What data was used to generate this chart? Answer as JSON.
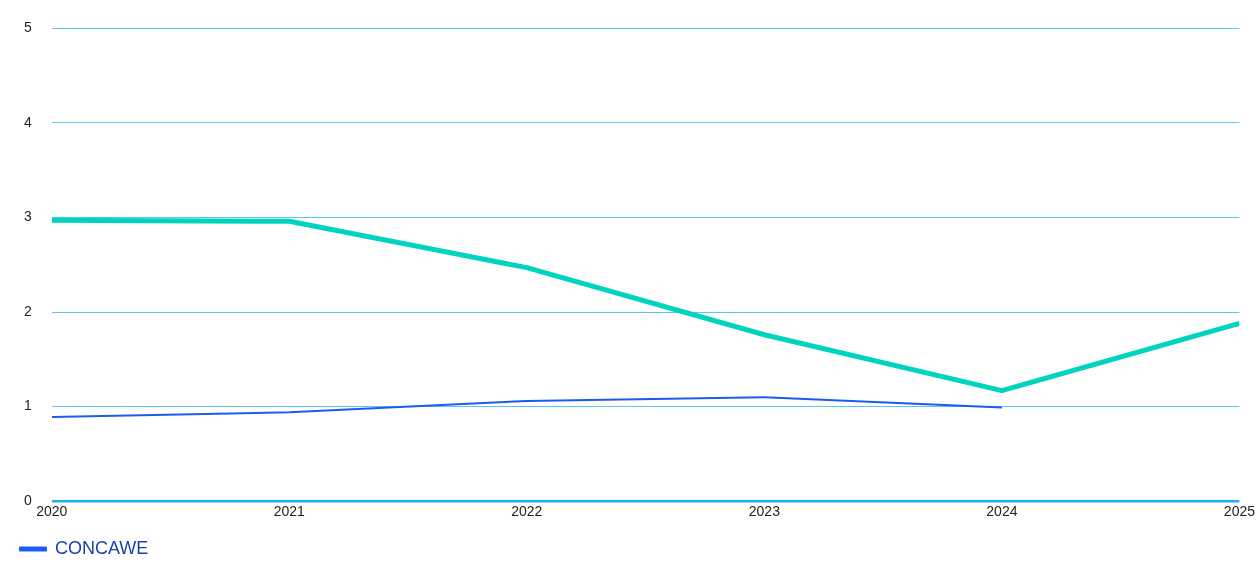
{
  "chart_data": {
    "type": "line",
    "x": [
      2020,
      2021,
      2022,
      2023,
      2024,
      2025
    ],
    "series": [
      {
        "name": "CONCAWE",
        "color": "#1a5cf0",
        "x": [
          2020,
          2021,
          2022,
          2023,
          2024
        ],
        "values": [
          0.89,
          0.94,
          1.06,
          1.1,
          0.99
        ]
      },
      {
        "color": "#00d4bf",
        "values": [
          2.97,
          2.96,
          2.47,
          1.76,
          1.17,
          1.88
        ]
      }
    ],
    "xlim": [
      2020,
      2025
    ],
    "xticks": [
      2020,
      2021,
      2022,
      2023,
      2024,
      2025
    ],
    "ylim": [
      0,
      5
    ],
    "yticks": [
      0,
      1,
      2,
      3,
      4,
      5
    ],
    "grid": "y",
    "legend": "bottom left",
    "line_style": "solid"
  }
}
